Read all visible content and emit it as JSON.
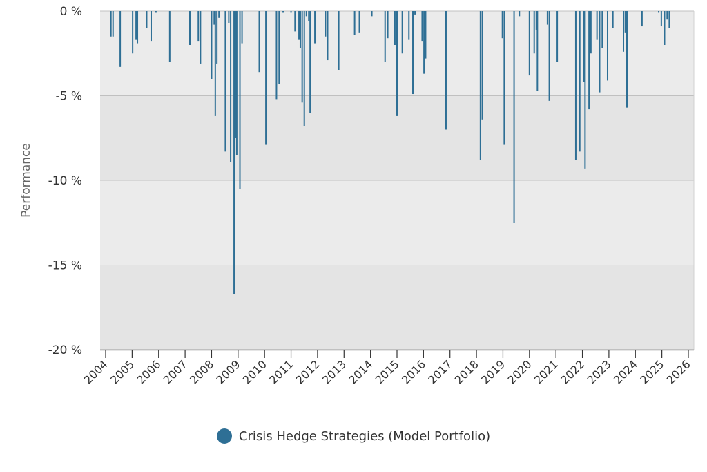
{
  "chart_data": {
    "type": "bar",
    "ylabel": "Performance",
    "ylim": [
      -20,
      0
    ],
    "y_ticks": [
      0,
      -5,
      -10,
      -15,
      -20
    ],
    "y_tick_labels": [
      "0 %",
      "-5 %",
      "-10 %",
      "-15 %",
      "-20 %"
    ],
    "x_ticks": [
      "2004",
      "2005",
      "2006",
      "2007",
      "2008",
      "2009",
      "2010",
      "2011",
      "2012",
      "2013",
      "2014",
      "2015",
      "2016",
      "2017",
      "2018",
      "2019",
      "2020",
      "2021",
      "2022",
      "2023",
      "2024",
      "2025",
      "2026"
    ],
    "xlim": [
      2004.0,
      2026.0
    ],
    "grid": true,
    "legend_position": "bottom",
    "series": [
      {
        "name": "Crisis Hedge Strategies (Model Portfolio)",
        "color": "#2e6f95",
        "x": [
          2004.2,
          2004.28,
          2004.55,
          2005.02,
          2005.15,
          2005.2,
          2005.55,
          2005.72,
          2005.9,
          2006.42,
          2007.18,
          2007.5,
          2007.58,
          2008.0,
          2008.1,
          2008.14,
          2008.2,
          2008.28,
          2008.52,
          2008.65,
          2008.72,
          2008.85,
          2008.9,
          2008.95,
          2009.07,
          2009.15,
          2009.8,
          2010.05,
          2010.45,
          2010.55,
          2010.7,
          2011.0,
          2011.15,
          2011.3,
          2011.35,
          2011.42,
          2011.5,
          2011.58,
          2011.67,
          2011.72,
          2011.9,
          2012.3,
          2012.38,
          2012.8,
          2013.4,
          2013.58,
          2014.05,
          2014.55,
          2014.65,
          2014.92,
          2015.0,
          2015.2,
          2015.45,
          2015.6,
          2015.68,
          2015.95,
          2016.02,
          2016.08,
          2016.85,
          2018.15,
          2018.22,
          2018.98,
          2019.05,
          2019.42,
          2019.62,
          2020.0,
          2020.18,
          2020.26,
          2020.3,
          2020.68,
          2020.75,
          2021.05,
          2021.75,
          2021.9,
          2022.05,
          2022.1,
          2022.25,
          2022.32,
          2022.55,
          2022.65,
          2022.75,
          2022.95,
          2023.15,
          2023.55,
          2023.62,
          2023.68,
          2024.25,
          2024.88,
          2024.98,
          2025.1,
          2025.2,
          2025.28
        ]
      }
    ],
    "values": [
      -1.5,
      -1.5,
      -3.3,
      -2.5,
      -1.7,
      -1.9,
      -1.0,
      -1.8,
      -0.1,
      -3.0,
      -2.0,
      -1.8,
      -3.1,
      -4.0,
      -0.8,
      -6.2,
      -3.1,
      -0.4,
      -8.3,
      -0.7,
      -8.9,
      -16.7,
      -7.5,
      -8.5,
      -10.5,
      -1.9,
      -3.6,
      -7.9,
      -5.2,
      -4.3,
      -0.1,
      -0.1,
      -1.2,
      -1.7,
      -2.2,
      -5.4,
      -6.8,
      -0.3,
      -0.6,
      -6.0,
      -1.9,
      -1.5,
      -2.9,
      -3.5,
      -1.4,
      -1.3,
      -0.3,
      -3.0,
      -1.6,
      -2.0,
      -6.2,
      -2.5,
      -1.7,
      -4.9,
      -0.2,
      -1.8,
      -3.7,
      -2.8,
      -7.0,
      -8.8,
      -6.4,
      -1.6,
      -7.9,
      -12.5,
      -0.3,
      -3.8,
      -2.5,
      -1.1,
      -4.7,
      -0.8,
      -5.3,
      -3.0,
      -8.8,
      -8.3,
      -4.2,
      -9.3,
      -5.8,
      -2.5,
      -1.7,
      -4.8,
      -2.2,
      -4.1,
      -1.0,
      -2.4,
      -1.3,
      -5.7,
      -0.9,
      -0.1,
      -0.9,
      -2.0,
      -0.5,
      -1.0
    ]
  }
}
